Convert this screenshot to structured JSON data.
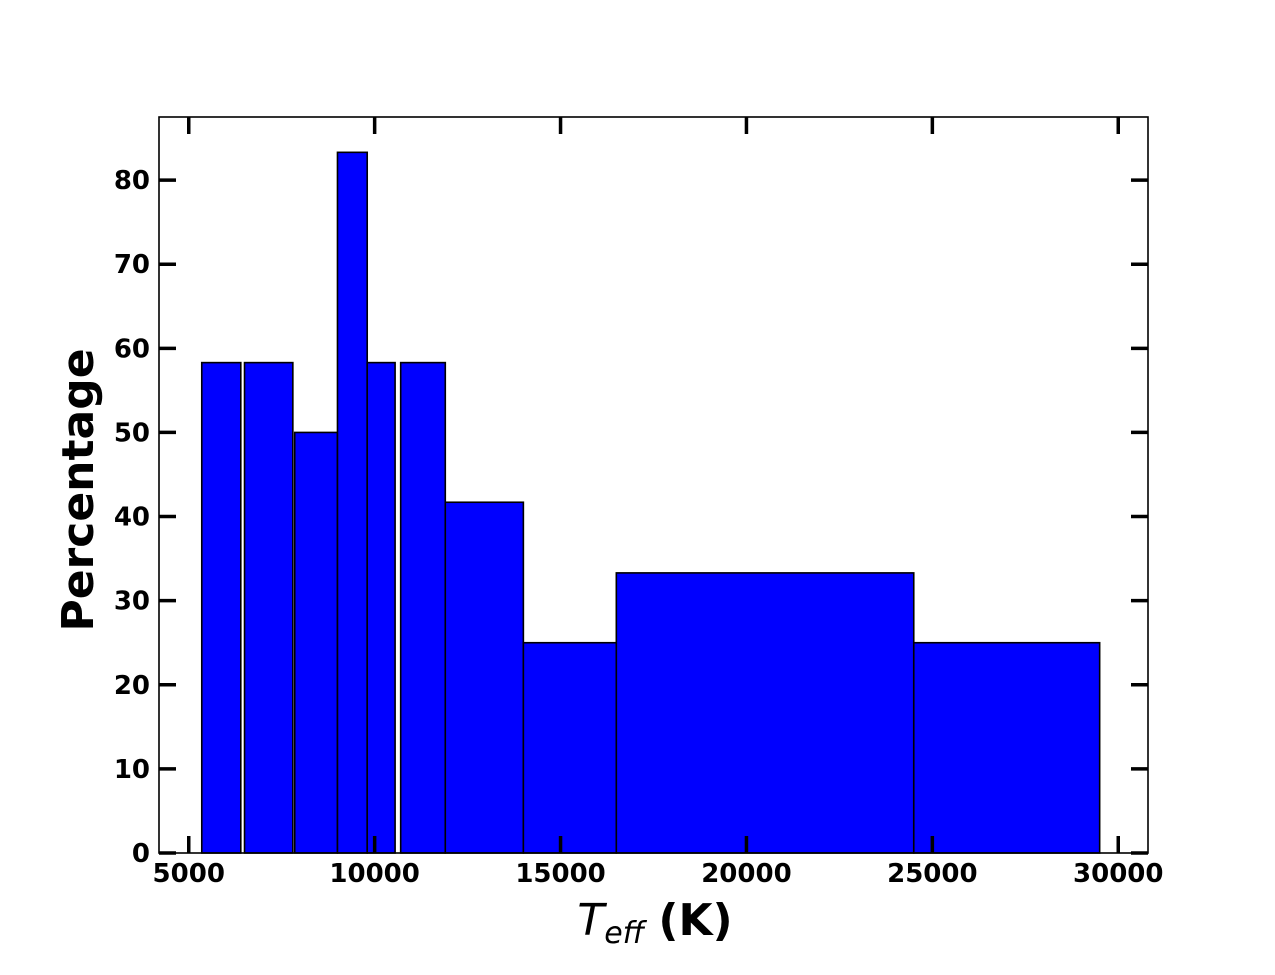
{
  "chart_data": {
    "type": "bar",
    "xlabel_symbol": "T",
    "xlabel_subscript": "eff",
    "xlabel_unit": "(K)",
    "ylabel": "Percentage",
    "xlim": [
      4200,
      30800
    ],
    "ylim": [
      0,
      87.5
    ],
    "xticks": [
      5000,
      10000,
      15000,
      20000,
      25000,
      30000
    ],
    "yticks": [
      0,
      10,
      20,
      30,
      40,
      50,
      60,
      70,
      80
    ],
    "grid": false,
    "legend": "none",
    "bar_color": "#0000ff",
    "edge_color": "#000000",
    "bins": [
      {
        "x0": 5350,
        "x1": 6400,
        "value": 58.3
      },
      {
        "x0": 6500,
        "x1": 7800,
        "value": 58.3
      },
      {
        "x0": 7850,
        "x1": 9000,
        "value": 50.0
      },
      {
        "x0": 9000,
        "x1": 9800,
        "value": 83.3
      },
      {
        "x0": 9800,
        "x1": 10550,
        "value": 58.3
      },
      {
        "x0": 10700,
        "x1": 11900,
        "value": 58.3
      },
      {
        "x0": 11900,
        "x1": 14000,
        "value": 41.7
      },
      {
        "x0": 14000,
        "x1": 16500,
        "value": 25.0
      },
      {
        "x0": 16500,
        "x1": 24500,
        "value": 33.3
      },
      {
        "x0": 24500,
        "x1": 29500,
        "value": 25.0
      }
    ]
  }
}
